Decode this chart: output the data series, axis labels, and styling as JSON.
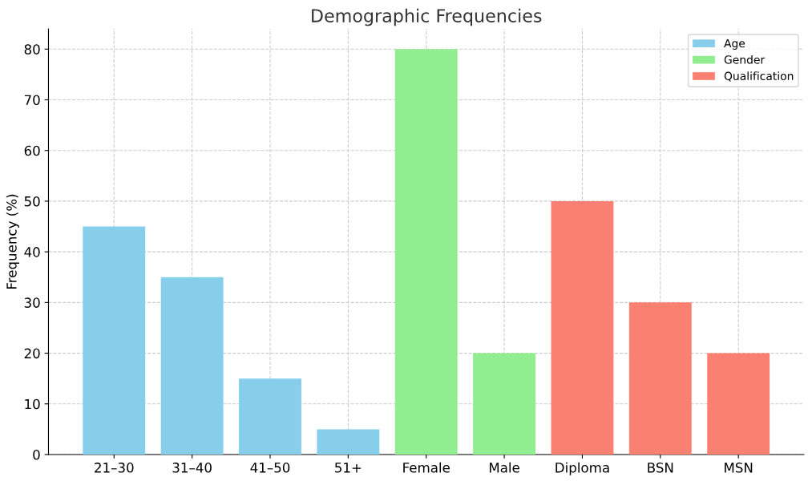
{
  "chart_data": {
    "type": "bar",
    "title": "Demographic Frequencies",
    "ylabel": "Frequency (%)",
    "categories": [
      "21–30",
      "31–40",
      "41–50",
      "51+",
      "Female",
      "Male",
      "Diploma",
      "BSN",
      "MSN"
    ],
    "series": [
      {
        "name": "Age",
        "color": "#87ceeb",
        "values": [
          45,
          35,
          15,
          5,
          null,
          null,
          null,
          null,
          null
        ]
      },
      {
        "name": "Gender",
        "color": "#90ee90",
        "values": [
          null,
          null,
          null,
          null,
          80,
          20,
          null,
          null,
          null
        ]
      },
      {
        "name": "Qualification",
        "color": "#fa8072",
        "values": [
          null,
          null,
          null,
          null,
          null,
          null,
          50,
          30,
          20
        ]
      }
    ],
    "ylim": [
      0,
      84
    ],
    "yticks": [
      0,
      10,
      20,
      30,
      40,
      50,
      60,
      70,
      80
    ],
    "grid": true,
    "legend": "top right"
  }
}
